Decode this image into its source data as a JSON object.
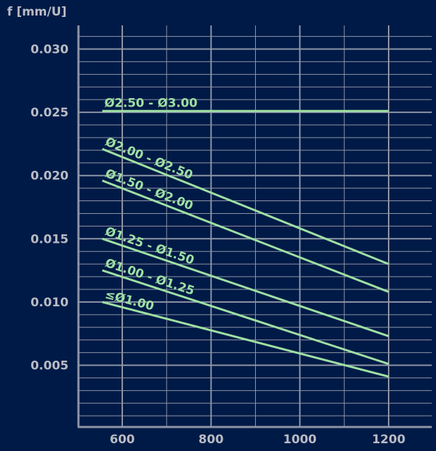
{
  "chart_data": {
    "type": "line",
    "ylabel": "f [mm/U]",
    "xlabel": "",
    "xlim": [
      490,
      1300
    ],
    "ylim": [
      0,
      0.0335
    ],
    "x_ticks": [
      600,
      800,
      1000,
      1200
    ],
    "x_tick_labels": [
      "600",
      "800",
      "1000",
      "1200"
    ],
    "y_ticks": [
      0.005,
      0.01,
      0.015,
      0.02,
      0.025,
      0.03
    ],
    "y_tick_labels": [
      "0.005",
      "0.010",
      "0.015",
      "0.020",
      "0.025",
      "0.030"
    ],
    "grid": true,
    "series": [
      {
        "name": "Ø2.50 - Ø3.00",
        "x": [
          555,
          1200
        ],
        "values": [
          0.0251,
          0.0251
        ]
      },
      {
        "name": "Ø2.00 - Ø2.50",
        "x": [
          555,
          1200
        ],
        "values": [
          0.0221,
          0.013
        ]
      },
      {
        "name": "Ø1.50 - Ø2.00",
        "x": [
          555,
          1200
        ],
        "values": [
          0.0196,
          0.0108
        ]
      },
      {
        "name": "Ø1.25 - Ø1.50",
        "x": [
          555,
          1200
        ],
        "values": [
          0.015,
          0.0073
        ]
      },
      {
        "name": "Ø1.00 - Ø1.25",
        "x": [
          555,
          1200
        ],
        "values": [
          0.0125,
          0.0051
        ]
      },
      {
        "name": "≤Ø1.00",
        "x": [
          555,
          1200
        ],
        "values": [
          0.01,
          0.0041
        ]
      }
    ]
  },
  "colors": {
    "background": "#001a47",
    "grid": "#8e96a6",
    "axis": "#8e96a6",
    "text": "#b9bcc4",
    "series": "#9ee0a3"
  }
}
